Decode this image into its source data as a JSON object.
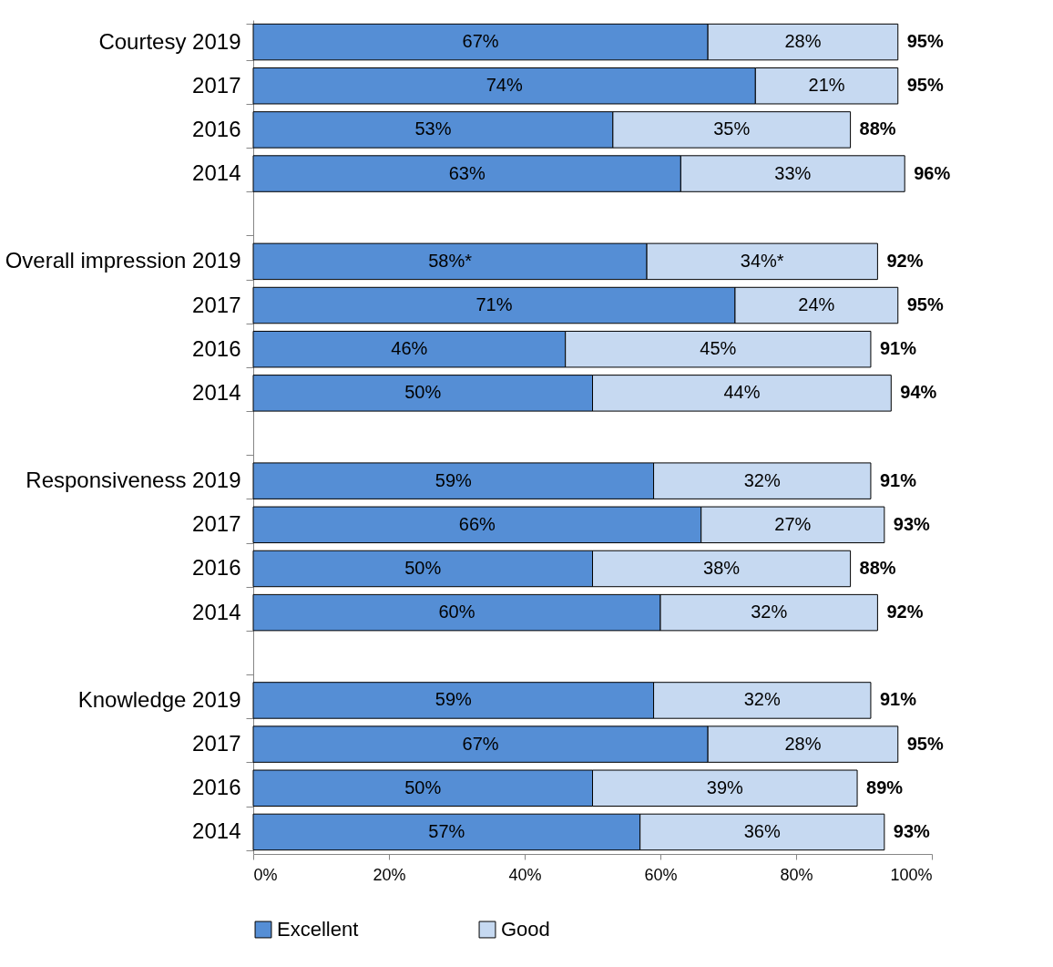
{
  "chart_data": {
    "type": "bar",
    "orientation": "horizontal",
    "stacked": true,
    "legend": "bottom",
    "grid": false,
    "categories": [
      "Courtesy 2019",
      "2017",
      "2016",
      "2014",
      null,
      "Overall impression 2019",
      "2017",
      "2016",
      "2014",
      null,
      "Responsiveness 2019",
      "2017",
      "2016",
      "2014",
      null,
      "Knowledge 2019",
      "2017",
      "2016",
      "2014"
    ],
    "xlim": [
      0,
      100
    ],
    "xticks": [
      {
        "value": 0,
        "label": "0%"
      },
      {
        "value": 20,
        "label": "20%"
      },
      {
        "value": 40,
        "label": "40%"
      },
      {
        "value": 60,
        "label": "60%"
      },
      {
        "value": 80,
        "label": "80%"
      },
      {
        "value": 100,
        "label": "100%"
      }
    ],
    "series": [
      {
        "name": "Excellent",
        "color": "#558ed5",
        "values": [
          67,
          74,
          53,
          63,
          null,
          58,
          71,
          46,
          50,
          null,
          59,
          66,
          50,
          60,
          null,
          59,
          67,
          50,
          57
        ],
        "value_labels": [
          "67%",
          "74%",
          "53%",
          "63%",
          null,
          "58%*",
          "71%",
          "46%",
          "50%",
          null,
          "59%",
          "66%",
          "50%",
          "60%",
          null,
          "59%",
          "67%",
          "50%",
          "57%"
        ]
      },
      {
        "name": "Good",
        "color": "#c6d9f1",
        "values": [
          28,
          21,
          35,
          33,
          null,
          34,
          24,
          45,
          44,
          null,
          32,
          27,
          38,
          32,
          null,
          32,
          28,
          39,
          36
        ],
        "value_labels": [
          "28%",
          "21%",
          "35%",
          "33%",
          null,
          "34%*",
          "24%",
          "45%",
          "44%",
          null,
          "32%",
          "27%",
          "38%",
          "32%",
          null,
          "32%",
          "28%",
          "39%",
          "36%"
        ]
      }
    ],
    "totals": [
      "95%",
      "95%",
      "88%",
      "96%",
      null,
      "92%",
      "95%",
      "91%",
      "94%",
      null,
      "91%",
      "93%",
      "88%",
      "92%",
      null,
      "91%",
      "95%",
      "89%",
      "93%"
    ]
  }
}
